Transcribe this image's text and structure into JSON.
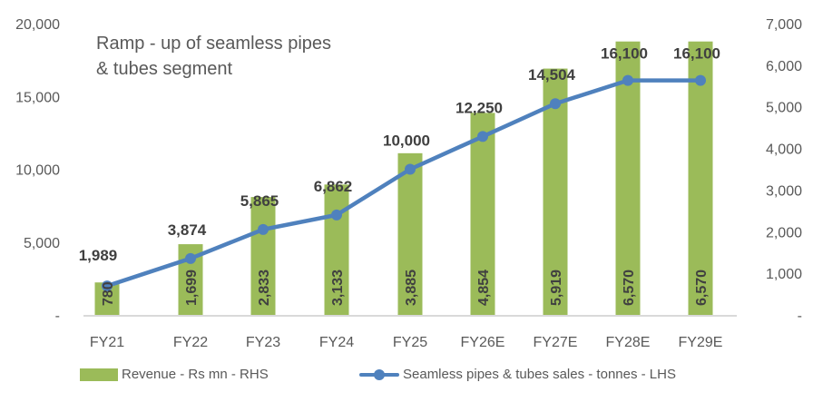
{
  "chart_data": {
    "type": "bar+line",
    "title": "Ramp - up of seamless pipes\n& tubes segment",
    "categories": [
      "FY21",
      "FY22",
      "FY23",
      "FY24",
      "FY25",
      "FY26E",
      "FY27E",
      "FY28E",
      "FY29E"
    ],
    "series": [
      {
        "name": "Revenue - Rs mn - RHS",
        "type": "bar",
        "axis": "right",
        "color": "#9BBB59",
        "values": [
          780,
          1699,
          2833,
          3133,
          3885,
          4854,
          5919,
          6570,
          6570
        ],
        "labels": [
          "780",
          "1,699",
          "2,833",
          "3,133",
          "3,885",
          "4,854",
          "5,919",
          "6,570",
          "6,570"
        ]
      },
      {
        "name": "Seamless pipes & tubes sales - tonnes - LHS",
        "type": "line",
        "axis": "left",
        "color": "#4F81BD",
        "values": [
          1989,
          3874,
          5865,
          6862,
          10000,
          12250,
          14504,
          16100,
          16100
        ],
        "labels": [
          "1,989",
          "3,874",
          "5,865",
          "6,862",
          "10,000",
          "12,250",
          "14,504",
          "16,100",
          "16,100"
        ]
      }
    ],
    "left_axis": {
      "ylim": [
        0,
        20000
      ],
      "ticks": [
        "-",
        "5,000",
        "10,000",
        "15,000",
        "20,000"
      ]
    },
    "right_axis": {
      "ylim": [
        0,
        7000
      ],
      "ticks": [
        "-",
        "1,000",
        "2,000",
        "3,000",
        "4,000",
        "5,000",
        "6,000",
        "7,000"
      ]
    },
    "xlabel": "",
    "ylabel_left": "",
    "ylabel_right": "",
    "grid": false,
    "legend_position": "bottom"
  },
  "legend": {
    "bar_label": "Revenue - Rs mn - RHS",
    "line_label": "Seamless pipes & tubes sales - tonnes - LHS"
  }
}
